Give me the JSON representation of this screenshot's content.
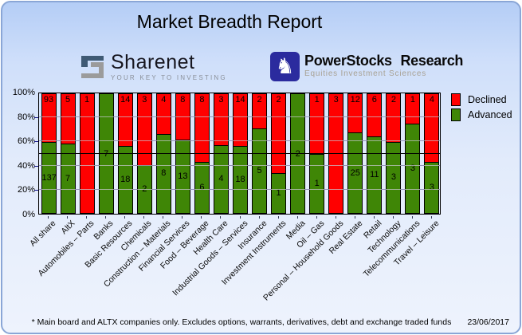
{
  "header": {
    "title": "Market Breadth Report"
  },
  "logos": {
    "sharenet": {
      "name": "Sharenet",
      "tagline": "YOUR KEY TO INVESTING"
    },
    "powerstocks": {
      "name": "PowerStocks Research",
      "tagline": "Equities Investment Sciences",
      "knight_glyph": "♞"
    }
  },
  "chart_data": {
    "type": "bar",
    "stacked": true,
    "normalized_to_percent": true,
    "categories": [
      "All share",
      "AltX",
      "Automobiles – Parts",
      "Banks",
      "Basic Resources",
      "Chemicals",
      "Construction – Materials",
      "Financial Services",
      "Food – Beverage",
      "Health Care",
      "Industrial Goods – Services",
      "Insurance",
      "Investment Instruments",
      "Media",
      "Oil – Gas",
      "Personal – Household Goods",
      "Real Estate",
      "Retail",
      "Technology",
      "Telecommunications",
      "Travel – Leisure"
    ],
    "series": [
      {
        "name": "Declined",
        "color": "#ff0000",
        "values": [
          93,
          5,
          1,
          0,
          14,
          3,
          4,
          8,
          8,
          3,
          14,
          2,
          2,
          0,
          1,
          3,
          12,
          6,
          2,
          1,
          4
        ]
      },
      {
        "name": "Advanced",
        "color": "#3f8606",
        "values": [
          137,
          7,
          0,
          7,
          18,
          2,
          8,
          13,
          6,
          4,
          18,
          5,
          1,
          2,
          1,
          0,
          25,
          11,
          3,
          3,
          3
        ]
      }
    ],
    "y_axis": {
      "ticks": [
        "0%",
        "20%",
        "40%",
        "60%",
        "80%",
        "100%"
      ],
      "min": 0,
      "max": 100
    },
    "gridlines": [
      20,
      40,
      60,
      80
    ],
    "gridline_color": "#141489",
    "reference_line": 50,
    "legend_position": "top-right",
    "legend": [
      "Declined",
      "Advanced"
    ]
  },
  "footer": {
    "note": "* Main board and ALTX companies only. Excludes options, warrants, derivatives, debt and exchange traded funds",
    "date": "23/06/2017"
  }
}
